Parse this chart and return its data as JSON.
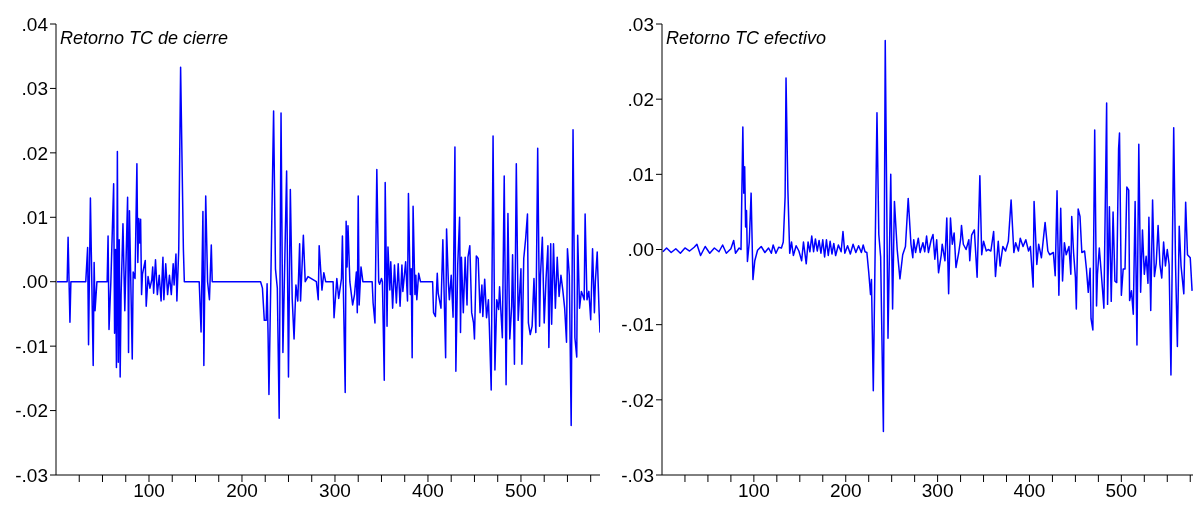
{
  "chart_data": [
    {
      "type": "line",
      "title": "Retorno TC de cierre",
      "x": [
        1,
        12,
        13,
        15,
        16,
        32,
        34,
        35,
        37,
        40,
        41,
        42,
        44,
        55,
        56,
        57,
        59,
        62,
        63,
        64,
        65,
        66,
        67,
        68,
        69,
        70,
        72,
        74,
        77,
        78,
        79,
        82,
        83,
        85,
        87,
        88,
        89,
        90,
        91,
        92,
        93,
        96,
        97,
        99,
        101,
        103,
        104,
        105,
        107,
        109,
        111,
        113,
        115,
        116,
        118,
        120,
        122,
        124,
        126,
        127,
        129,
        130,
        132,
        134,
        137,
        138,
        154,
        156,
        158,
        159,
        161,
        163,
        165,
        167,
        168,
        220,
        222,
        224,
        226,
        227,
        228,
        229,
        234,
        236,
        238,
        240,
        242,
        244,
        248,
        250,
        252,
        254,
        256,
        258,
        260,
        262,
        263,
        266,
        268,
        271,
        280,
        282,
        283,
        286,
        288,
        290,
        298,
        299,
        302,
        304,
        307,
        308,
        311,
        312,
        313,
        314,
        316,
        319,
        321,
        323,
        324,
        325,
        326,
        328,
        330,
        340,
        341,
        343,
        345,
        347,
        348,
        350,
        351,
        353,
        354,
        356,
        357,
        359,
        360,
        362,
        364,
        366,
        368,
        370,
        372,
        373,
        376,
        378,
        379,
        381,
        382,
        383,
        384,
        386,
        387,
        388,
        390,
        392,
        405,
        406,
        408,
        410,
        411,
        414,
        416,
        417,
        419,
        420,
        422,
        423,
        425,
        427,
        429,
        430,
        432,
        434,
        435,
        436,
        438,
        440,
        442,
        443,
        445,
        447,
        449,
        450,
        452,
        454,
        456,
        458,
        459,
        461,
        463,
        465,
        466,
        468,
        470,
        472,
        474,
        476,
        477,
        480,
        482,
        484,
        486,
        488,
        490,
        491,
        493,
        495,
        497,
        500,
        501,
        503,
        505,
        507,
        508,
        510,
        512,
        514,
        516,
        518,
        520,
        521,
        523,
        525,
        527,
        529,
        530,
        532,
        533,
        535,
        537,
        539,
        541,
        543,
        545,
        547,
        549,
        550,
        552,
        554,
        556,
        558,
        560,
        561,
        563,
        565,
        568,
        569,
        571,
        573,
        575,
        577,
        579,
        580,
        582,
        584,
        585
      ],
      "series": [
        {
          "color": "#0000ff",
          "values": [
            0,
            0,
            0.0069,
            -0.0063,
            0,
            0,
            0.0053,
            -0.0098,
            0.013,
            -0.013,
            0.003,
            -0.0045,
            0,
            0,
            0.0071,
            -0.0074,
            0,
            0.0152,
            -0.008,
            0.005,
            -0.0133,
            0.0202,
            -0.0125,
            0.0065,
            -0.0148,
            -0.002,
            0.009,
            -0.0045,
            0.0131,
            -0.011,
            0.011,
            -0.012,
            0.0015,
            0.0005,
            0.0183,
            0.003,
            0.0098,
            0.006,
            0.0097,
            -0.002,
            0.0012,
            0.0033,
            -0.0038,
            0.0008,
            -0.001,
            0.0003,
            0.0023,
            -0.0018,
            0.0034,
            -0.002,
            0.001,
            -0.003,
            0.0038,
            -0.0028,
            0.0028,
            -0.002,
            0.001,
            -0.002,
            0.0028,
            -0.0005,
            0.0043,
            -0.003,
            0.005,
            0.0333,
            0.005,
            0,
            0,
            -0.0078,
            0.0109,
            -0.013,
            0.0133,
            0,
            -0.0028,
            0.0057,
            0,
            0,
            -0.001,
            -0.006,
            -0.006,
            -0.0003,
            -0.0078,
            -0.0175,
            0.0265,
            0.002,
            -0.001,
            -0.0212,
            0.0262,
            -0.011,
            0.0172,
            -0.0148,
            0.0143,
            -0.0026,
            -0.0089,
            -0.0005,
            -0.003,
            0.0059,
            -0.003,
            0.0072,
            0,
            0.0008,
            0,
            -0.0028,
            0.0056,
            -0.0013,
            0.0014,
            0,
            0,
            -0.0056,
            0.0005,
            -0.0026,
            0.0005,
            0.0071,
            -0.0172,
            0.0094,
            0.0023,
            0.0087,
            0,
            -0.0036,
            -0.002,
            0.0015,
            -0.0048,
            0.0133,
            -0.0036,
            0.0023,
            0,
            0,
            -0.0033,
            -0.0064,
            0.0174,
            0,
            -0.0004,
            0.0005,
            0,
            -0.0153,
            0.0154,
            -0.0069,
            0.0054,
            -0.0013,
            0.0031,
            -0.0041,
            0.0026,
            -0.0033,
            0.0028,
            -0.0038,
            0.0026,
            -0.0015,
            0.0031,
            -0.003,
            0.0137,
            -0.002,
            0.002,
            -0.0118,
            0.0117,
            -0.002,
            0.001,
            -0.0028,
            0.0013,
            0,
            0,
            -0.0048,
            -0.0054,
            0.0013,
            -0.0018,
            -0.0041,
            0.0065,
            0.0005,
            -0.0118,
            0.0082,
            -0.0003,
            -0.0028,
            0.001,
            -0.0055,
            0.0209,
            -0.0139,
            0.0026,
            0.01,
            -0.0079,
            0.0038,
            -0.0048,
            0.0038,
            -0.0036,
            0.0038,
            0.0056,
            -0.0048,
            -0.0064,
            -0.0089,
            0.004,
            0.0036,
            -0.0048,
            -0.0005,
            -0.0054,
            0.0004,
            -0.0056,
            -0.0028,
            -0.0069,
            -0.0168,
            0.0226,
            -0.0137,
            -0.0028,
            -0.0043,
            -0.0008,
            -0.0087,
            0.0164,
            -0.016,
            0.0106,
            -0.0089,
            -0.0038,
            0.0042,
            -0.0128,
            0.0183,
            -0.006,
            0.002,
            -0.0128,
            0.0036,
            0.0066,
            0.0105,
            -0.0064,
            -0.0082,
            -0.0069,
            0.0005,
            -0.0079,
            0.0207,
            -0.0069,
            0.001,
            0.0069,
            -0.0064,
            0.0005,
            0.0056,
            -0.0102,
            0.0059,
            -0.0066,
            0.0059,
            -0.0041,
            0.0038,
            -0.0023,
            0.001,
            -0.0013,
            -0.0041,
            -0.0094,
            0.0051,
            0.001,
            -0.0223,
            0.0236,
            -0.0087,
            -0.0117,
            0.0072,
            -0.0041,
            -0.0015,
            -0.0028,
            0.0105,
            -0.0028,
            -0.0015,
            -0.0059,
            0.0051,
            -0.0048,
            0,
            0.0046,
            -0.0046,
            -0.0079
          ]
        }
      ],
      "xlim": [
        0,
        585
      ],
      "xticks": [
        {
          "value": 25,
          "label": null
        },
        {
          "value": 50,
          "label": null
        },
        {
          "value": 75,
          "label": null
        },
        100,
        {
          "value": 125,
          "label": null
        },
        {
          "value": 150,
          "label": null
        },
        {
          "value": 175,
          "label": null
        },
        200,
        {
          "value": 225,
          "label": null
        },
        {
          "value": 250,
          "label": null
        },
        {
          "value": 275,
          "label": null
        },
        300,
        {
          "value": 325,
          "label": null
        },
        {
          "value": 350,
          "label": null
        },
        {
          "value": 375,
          "label": null
        },
        400,
        {
          "value": 425,
          "label": null
        },
        {
          "value": 450,
          "label": null
        },
        {
          "value": 475,
          "label": null
        },
        500,
        {
          "value": 525,
          "label": null
        },
        {
          "value": 550,
          "label": null
        },
        {
          "value": 575,
          "label": null
        }
      ],
      "ylim": [
        -0.03,
        0.04
      ],
      "yticks": [
        {
          "value": -0.03,
          "label": "-.03"
        },
        {
          "value": -0.02,
          "label": "-.02"
        },
        {
          "value": -0.01,
          "label": "-.01"
        },
        {
          "value": 0,
          "label": ".00"
        },
        {
          "value": 0.01,
          "label": ".01"
        },
        {
          "value": 0.02,
          "label": ".02"
        },
        {
          "value": 0.03,
          "label": ".03"
        },
        {
          "value": 0.04,
          "label": ".04"
        }
      ]
    },
    {
      "type": "line",
      "title": "Retorno TC efectivo",
      "x": [
        1,
        5,
        10,
        15,
        20,
        25,
        30,
        35,
        38,
        42,
        47,
        52,
        57,
        62,
        66,
        70,
        75,
        78,
        80,
        84,
        86,
        88,
        89,
        90,
        91,
        92,
        93,
        95,
        97,
        99,
        101,
        104,
        108,
        112,
        116,
        119,
        121,
        124,
        127,
        130,
        132,
        134,
        135,
        137,
        139,
        141,
        143,
        146,
        149,
        152,
        154,
        157,
        159,
        161,
        163,
        165,
        167,
        169,
        171,
        173,
        175,
        177,
        179,
        181,
        183,
        185,
        187,
        189,
        192,
        195,
        197,
        199,
        202,
        205,
        208,
        211,
        214,
        217,
        219,
        221,
        223,
        225,
        227,
        228,
        230,
        234,
        236,
        238,
        241,
        243,
        246,
        249,
        251,
        253,
        256,
        259,
        262,
        265,
        268,
        271,
        273,
        274,
        276,
        279,
        281,
        284,
        286,
        288,
        290,
        293,
        295,
        297,
        299,
        301,
        304,
        305,
        308,
        310,
        312,
        314,
        316,
        318,
        320,
        323,
        325,
        326,
        328,
        331,
        334,
        335,
        337,
        340,
        343,
        346,
        348,
        350,
        353,
        355,
        358,
        361,
        363,
        366,
        368,
        371,
        374,
        377,
        380,
        383,
        385,
        388,
        390,
        393,
        396,
        399,
        401,
        404,
        405,
        408,
        410,
        413,
        417,
        420,
        422,
        426,
        428,
        430,
        432,
        434,
        436,
        438,
        440,
        443,
        445,
        446,
        448,
        450,
        451,
        453,
        455,
        457,
        460,
        462,
        464,
        466,
        467,
        469,
        471,
        473,
        474,
        476,
        478,
        481,
        484,
        485,
        487,
        489,
        491,
        493,
        495,
        497,
        498,
        500,
        502,
        504,
        506,
        508,
        509,
        511,
        513,
        515,
        517,
        519,
        521,
        523,
        525,
        527,
        529,
        530,
        532,
        534,
        536,
        538,
        540,
        542,
        544,
        546,
        548,
        550,
        552,
        554,
        557,
        559,
        561,
        563,
        565,
        568,
        570,
        572,
        575,
        577
      ],
      "series": [
        {
          "color": "#0000ff",
          "values": [
            -0.0003,
            0.0002,
            -0.0004,
            0.0001,
            -0.0005,
            0.0002,
            -0.0002,
            0.0003,
            0.0007,
            -0.0008,
            0.0004,
            -0.0005,
            0.0002,
            -0.0003,
            0.0006,
            -0.0005,
            0.0001,
            0.0012,
            -0.0005,
            0.0002,
            0,
            0.0163,
            0.0075,
            0.011,
            0.003,
            0.0052,
            -0.0016,
            0.001,
            0.0075,
            -0.004,
            -0.0015,
            -0.0001,
            0.0004,
            -0.0004,
            0.0002,
            -0.0005,
            0.0006,
            -0.0005,
            0.0003,
            0.0002,
            0.001,
            0.007,
            0.0228,
            0.008,
            -0.0005,
            0.001,
            -0.0008,
            0.0005,
            -0.0002,
            -0.0015,
            0.001,
            -0.0019,
            0.001,
            -0.0003,
            0.0018,
            -0.0003,
            0.0014,
            -0.0002,
            0.0012,
            -0.0005,
            0.0013,
            -0.001,
            0.0013,
            -0.0008,
            0.0011,
            -0.0006,
            0.0008,
            -0.0008,
            0.0006,
            -0.0003,
            0.0024,
            -0.0005,
            0.0005,
            -0.0006,
            0.0007,
            -0.0004,
            0.0005,
            -0.0004,
            0.0006,
            -0.0003,
            -0.0004,
            -0.003,
            -0.006,
            -0.004,
            -0.0188,
            0.0182,
            0.002,
            -0.001,
            -0.0242,
            0.0278,
            -0.0118,
            0.01,
            -0.0079,
            0.0064,
            0,
            -0.0039,
            -0.0007,
            0.0004,
            0.0068,
            0.0007,
            -0.0011,
            0.0013,
            -0.0004,
            0.0015,
            -0.0004,
            0.0009,
            -0.0003,
            0.0018,
            -0.0004,
            0.0013,
            0.002,
            -0.0013,
            0.0013,
            -0.0031,
            -0.0007,
            0.0007,
            -0.0015,
            0.0042,
            -0.0059,
            0.0042,
            0.0007,
            0.0022,
            -0.0024,
            -0.0004,
            0.0013,
            0.0032,
            0.0007,
            0,
            0.0013,
            -0.0015,
            0.0019,
            0.0026,
            -0.0037,
            0.0098,
            -0.0007,
            0.0011,
            -0.0002,
            0,
            -0.0002,
            0.0024,
            -0.0036,
            0.0011,
            -0.0022,
            0.0004,
            -0.0002,
            0.0011,
            0.0066,
            -0.0004,
            0.0009,
            -0.0002,
            0.0015,
            0.0004,
            0.0013,
            -0.0002,
            0.0004,
            -0.005,
            0.0064,
            -0.002,
            0.0007,
            -0.0011,
            0.0036,
            -0.0002,
            -0.0007,
            -0.0004,
            -0.0035,
            0.0078,
            -0.0061,
            0.0055,
            -0.0042,
            0.0009,
            -0.0007,
            0.0004,
            -0.0033,
            0.0044,
            -0.0004,
            -0.0037,
            -0.0079,
            0.0054,
            0.0044,
            -0.0004,
            -0.0002,
            -0.0026,
            -0.0057,
            -0.0025,
            -0.0092,
            -0.0107,
            0.0159,
            -0.0075,
            -0.0033,
            0.0002,
            -0.0029,
            -0.0078,
            0.0195,
            -0.0073,
            0.0057,
            -0.0069,
            0.005,
            -0.0042,
            -0.0044,
            0.0134,
            0.0155,
            -0.0061,
            -0.0026,
            -0.0026,
            0.0083,
            0.0079,
            -0.0068,
            -0.0055,
            -0.0086,
            0.0064,
            -0.0127,
            0.014,
            -0.0057,
            0.0026,
            -0.0033,
            -0.0009,
            -0.0045,
            0.0043,
            -0.0081,
            0.0066,
            -0.0036,
            -0.0018,
            0.0032,
            -0.002,
            -0.0038,
            0.001,
            -0.0022,
            0,
            -0.002,
            -0.0167,
            0.0162,
            -0.002,
            -0.0129,
            0.0031,
            -0.0022,
            -0.0059,
            0.0063,
            -0.0007,
            -0.0011,
            -0.0055
          ]
        }
      ],
      "xlim": [
        0,
        578
      ],
      "xticks": [
        {
          "value": 25,
          "label": null
        },
        {
          "value": 50,
          "label": null
        },
        {
          "value": 75,
          "label": null
        },
        100,
        {
          "value": 125,
          "label": null
        },
        {
          "value": 150,
          "label": null
        },
        {
          "value": 175,
          "label": null
        },
        200,
        {
          "value": 225,
          "label": null
        },
        {
          "value": 250,
          "label": null
        },
        {
          "value": 275,
          "label": null
        },
        300,
        {
          "value": 325,
          "label": null
        },
        {
          "value": 350,
          "label": null
        },
        {
          "value": 375,
          "label": null
        },
        400,
        {
          "value": 425,
          "label": null
        },
        {
          "value": 450,
          "label": null
        },
        {
          "value": 475,
          "label": null
        },
        500,
        {
          "value": 525,
          "label": null
        },
        {
          "value": 550,
          "label": null
        },
        {
          "value": 575,
          "label": null
        }
      ],
      "ylim": [
        -0.03,
        0.03
      ],
      "yticks": [
        {
          "value": -0.03,
          "label": "-.03"
        },
        {
          "value": -0.02,
          "label": "-.02"
        },
        {
          "value": -0.01,
          "label": "-.01"
        },
        {
          "value": 0,
          "label": ".00"
        },
        {
          "value": 0.01,
          "label": ".01"
        },
        {
          "value": 0.02,
          "label": ".02"
        },
        {
          "value": 0.03,
          "label": ".03"
        }
      ]
    }
  ]
}
